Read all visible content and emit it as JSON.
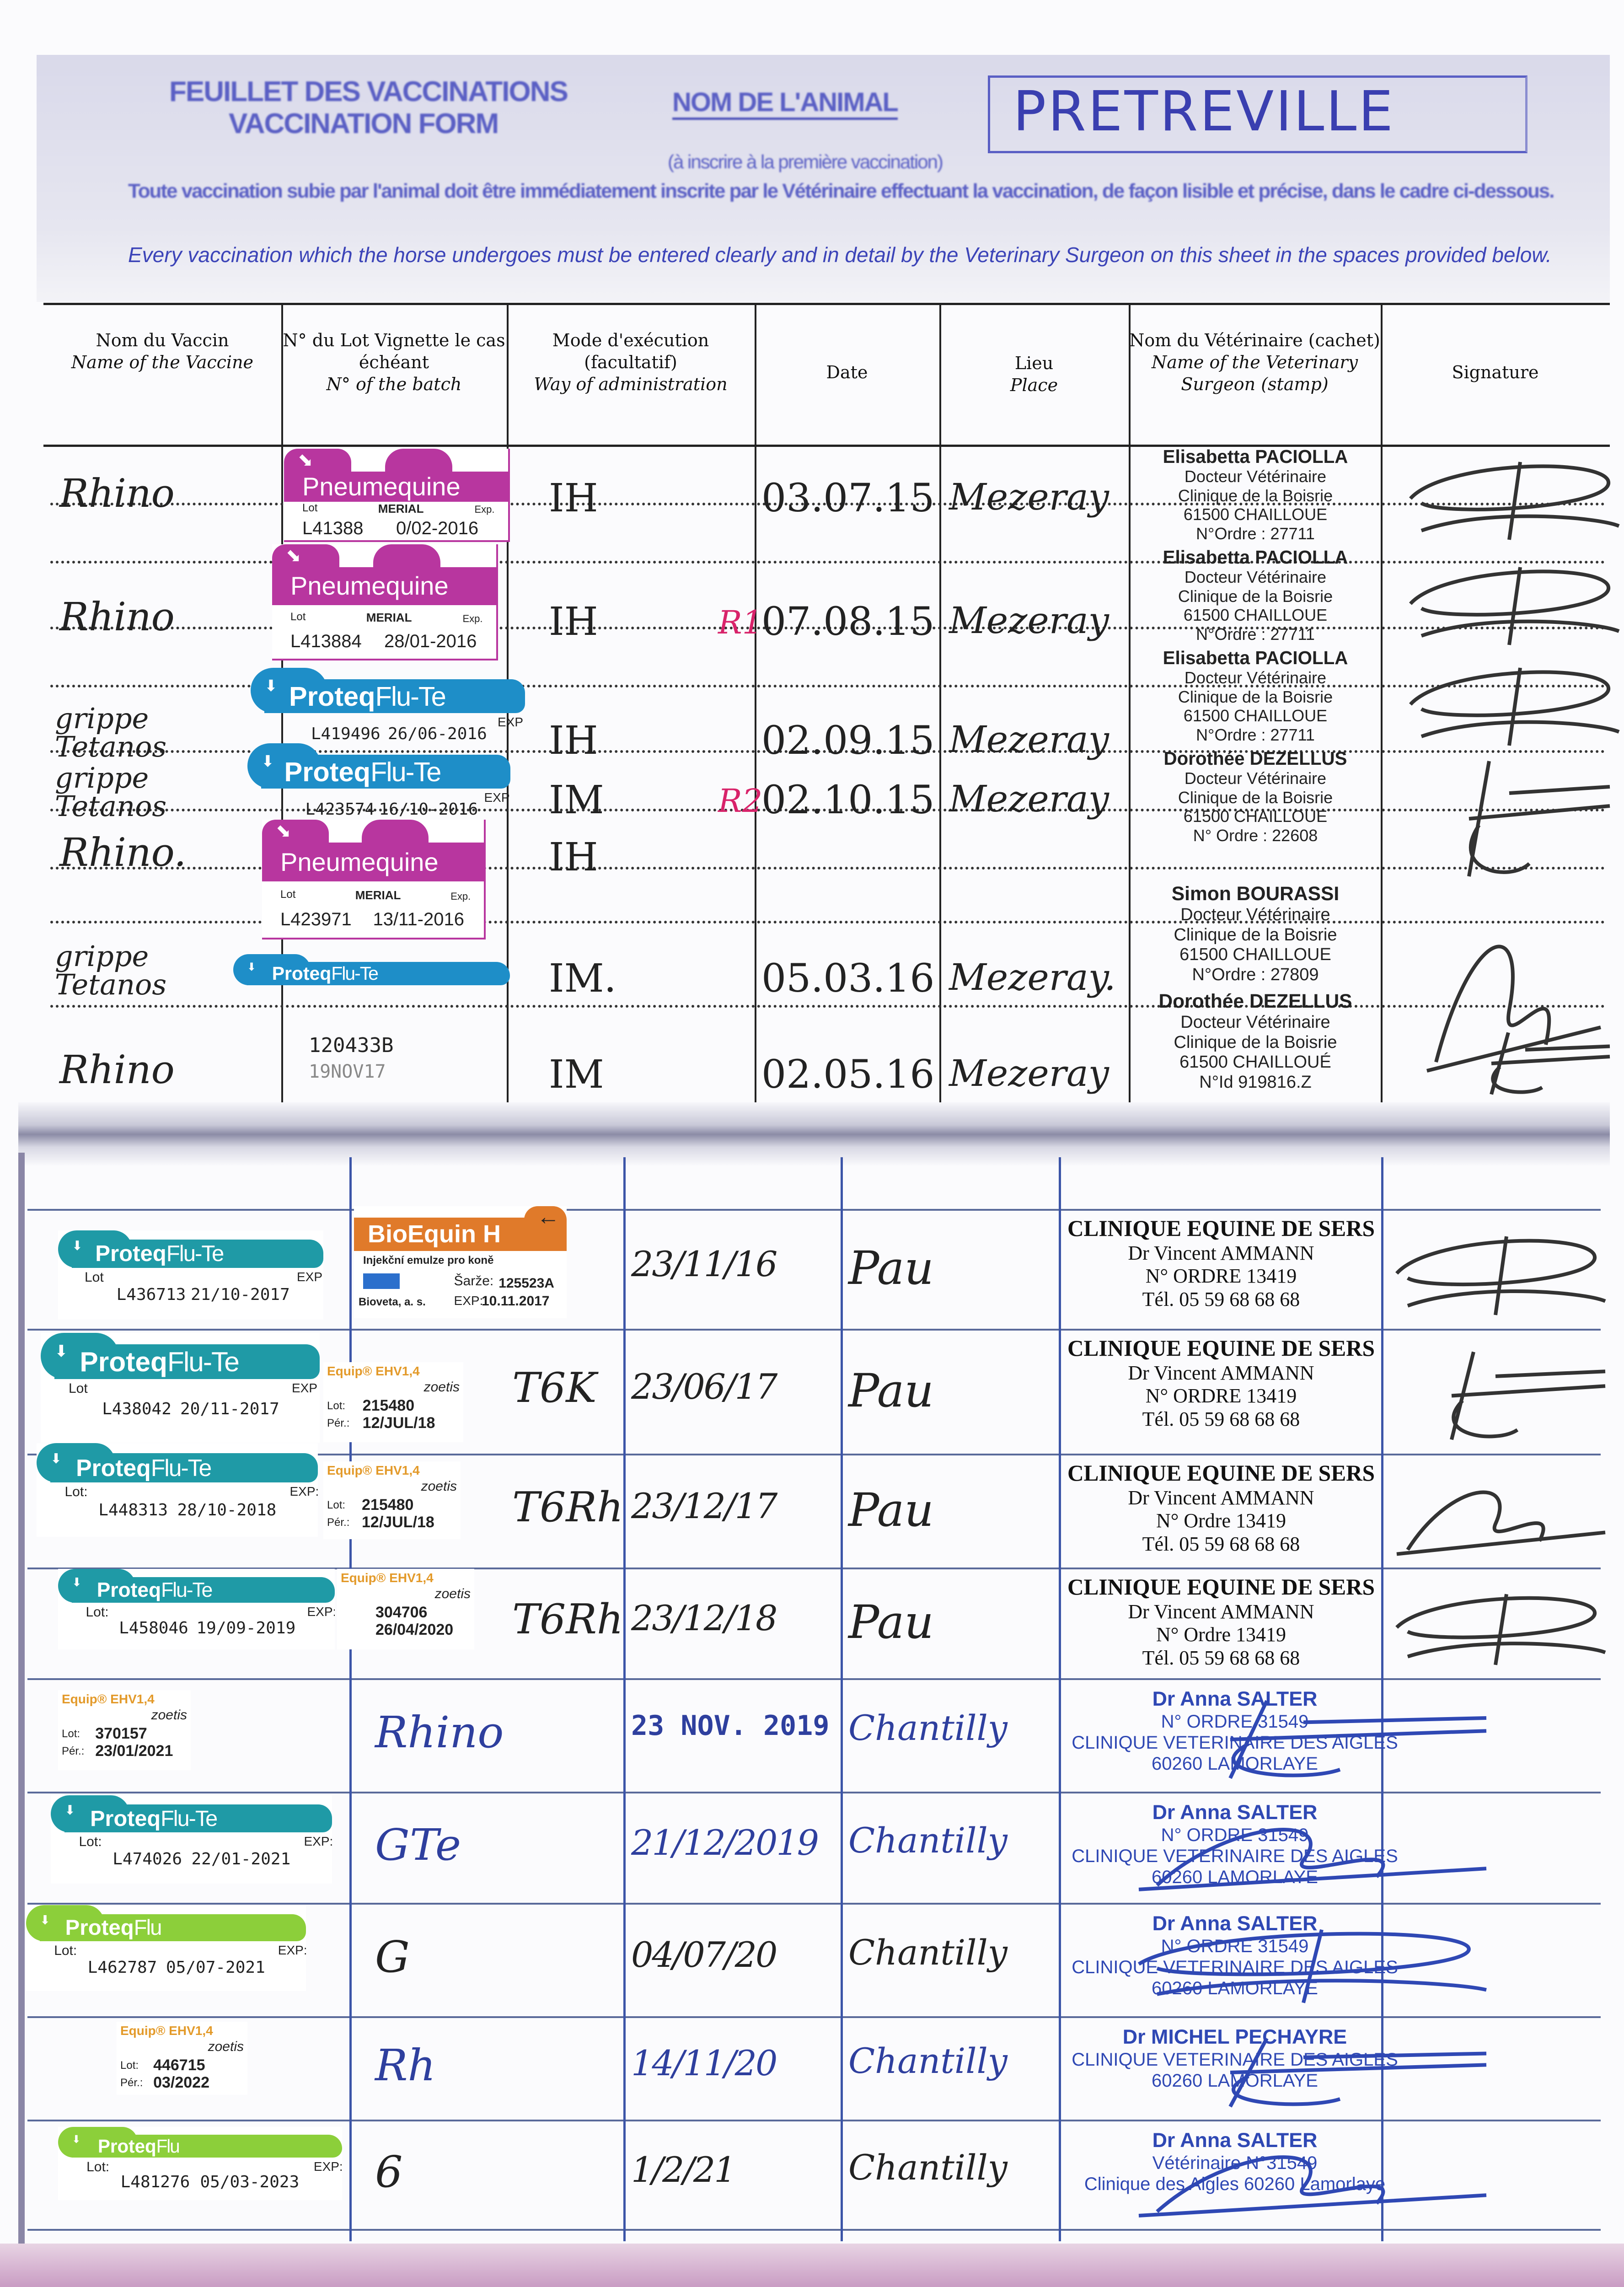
{
  "header": {
    "title_fr": "FEUILLET DES VACCINATIONS",
    "title_en": "VACCINATION FORM",
    "animal_name_label": "NOM DE L'ANIMAL",
    "animal_name": "PRETREVILLE",
    "animal_name_note": "(à inscrire à la première vaccination)",
    "instruction_fr": "Toute vaccination subie par l'animal doit être immédiatement inscrite par le Vétérinaire effectuant la vaccination, de façon lisible et précise, dans le cadre ci-dessous.",
    "instruction_en": "Every vaccination which the horse undergoes must be entered clearly and in detail by the Veterinary Surgeon on this sheet in the spaces provided below."
  },
  "columns": [
    {
      "fr": "Nom du Vaccin",
      "en": "Name of the Vaccine"
    },
    {
      "fr": "N° du Lot Vignette le cas échéant",
      "en": "N° of the batch"
    },
    {
      "fr": "Mode d'exécution (facultatif)",
      "en": "Way of administration"
    },
    {
      "fr": "Date",
      "en": ""
    },
    {
      "fr": "Lieu",
      "en": "Place"
    },
    {
      "fr": "Nom du Vétérinaire (cachet)",
      "en": "Name of the Veterinary Surgeon (stamp)"
    },
    {
      "fr": "Signature",
      "en": ""
    }
  ],
  "colors": {
    "pneumequine": "#b8369f",
    "proteq_flu_te_top": "#1e8ec8",
    "proteq_flu_te": "#1f9aa6",
    "proteq_flu": "#8ccf3a",
    "bioequin": "#e07a2a",
    "equip": "#e39a2a",
    "ink_blue": "#2e3f9e",
    "ink_red": "#d8236a"
  },
  "top_entries": [
    {
      "vaccine": "Rhino",
      "mode": "IH",
      "date": "03.07.15",
      "place": "Mezeray",
      "sticker": {
        "type": "pneumequine",
        "product": "Pneumequine",
        "maker": "MERIAL",
        "lot_label": "Lot",
        "exp_label": "Exp.",
        "lot": "L41388",
        "exp": "0/02-2016"
      },
      "stamp": [
        "Elisabetta PACIOLLA",
        "Docteur Vétérinaire",
        "Clinique de la Boisrie",
        "61500 CHAILLOUE",
        "N°Ordre : 27711"
      ]
    },
    {
      "vaccine": "Rhino",
      "mode": "IH",
      "date": "07.08.15",
      "place": "Mezeray",
      "annotation": "R1",
      "sticker": {
        "type": "pneumequine",
        "product": "Pneumequine",
        "maker": "MERIAL",
        "lot_label": "Lot",
        "exp_label": "Exp.",
        "lot": "L413884",
        "exp": "28/01-2016"
      },
      "stamp": [
        "Elisabetta PACIOLLA",
        "Docteur Vétérinaire",
        "Clinique de la Boisrie",
        "61500 CHAILLOUE",
        "N°Ordre : 27711"
      ]
    },
    {
      "vaccine": "grippe Tetanos",
      "mode": "IH",
      "date": "02.09.15",
      "place": "Mezeray",
      "sticker": {
        "type": "proteq",
        "brand": "Proteq",
        "variant": "Flu-Te",
        "exp_label": "EXP",
        "lot": "L419496",
        "exp": "26/06-2016"
      },
      "stamp": [
        "Elisabetta PACIOLLA",
        "Docteur Vétérinaire",
        "Clinique de la Boisrie",
        "61500 CHAILLOUE",
        "N°Ordre : 27711"
      ]
    },
    {
      "vaccine": "grippe Tetanos",
      "mode": "IM",
      "date": "02.10.15",
      "place": "Mezeray",
      "annotation": "R2",
      "sticker": {
        "type": "proteq",
        "brand": "Proteq",
        "variant": "Flu-Te",
        "exp_label": "EXP",
        "lot": "L423574",
        "exp": "16/10-2016"
      },
      "stamp": [
        "Dorothée DEZELLUS",
        "Docteur Vétérinaire",
        "Clinique de la Boisrie",
        "61500 CHAILLOUE",
        "N° Ordre : 22608"
      ]
    },
    {
      "vaccine": "Rhino.",
      "mode": "IH",
      "date": "",
      "place": "",
      "sticker": {
        "type": "pneumequine",
        "product": "Pneumequine",
        "maker": "MERIAL",
        "lot_label": "Lot",
        "exp_label": "Exp.",
        "lot": "L423971",
        "exp": "13/11-2016"
      }
    },
    {
      "vaccine": "grippe Tetanos",
      "mode": "IM.",
      "date": "05.03.16",
      "place": "Mezeray.",
      "sticker": {
        "type": "proteq",
        "brand": "Proteq",
        "variant": "Flu-Te"
      },
      "stamp": [
        "Simon BOURASSI",
        "Docteur Vétérinaire",
        "Clinique de la Boisrie",
        "61500 CHAILLOUE",
        "N°Ordre : 27809"
      ]
    },
    {
      "vaccine": "Rhino",
      "mode": "IM",
      "date": "02.05.16",
      "place": "Mezeray",
      "batch": [
        "120433B",
        "19NOV17"
      ],
      "stamp": [
        "Dorothée DEZELLUS",
        "Docteur Vétérinaire",
        "Clinique de la Boisrie",
        "61500 CHAILLOUÉ",
        "N°Id 919816.Z"
      ]
    }
  ],
  "bottom_entries": [
    {
      "stickers": [
        {
          "type": "proteq",
          "brand": "Proteq",
          "variant": "Flu-Te",
          "lot_label": "Lot",
          "exp_label": "EXP",
          "lot": "L436713",
          "exp": "21/10-2017"
        },
        {
          "type": "bioequin",
          "product": "BioEquin H",
          "subtitle": "Injekční emulze pro koně",
          "maker": "Bioveta, a. s.",
          "lot_label": "Šarže:",
          "exp_label": "EXP:",
          "lot": "125523A",
          "exp": "10.11.2017"
        }
      ],
      "mode": "",
      "date": "23/11/16",
      "place": "Pau",
      "stamp": [
        "CLINIQUE EQUINE DE SERS",
        "Dr Vincent AMMANN",
        "N° ORDRE 13419",
        "Tél. 05 59 68 68 68"
      ]
    },
    {
      "stickers": [
        {
          "type": "proteq",
          "brand": "Proteq",
          "variant": "Flu-Te",
          "lot_label": "Lot",
          "exp_label": "EXP",
          "lot": "L438042",
          "exp": "20/11-2017"
        },
        {
          "type": "equip",
          "product": "Equip® EHV1,4",
          "maker": "zoetis",
          "lot_label": "Lot:",
          "exp_label": "Pér.:",
          "lot": "215480",
          "exp": "12/JUL/18"
        }
      ],
      "mode": "T6K",
      "date": "23/06/17",
      "place": "Pau",
      "stamp": [
        "CLINIQUE EQUINE DE SERS",
        "Dr Vincent AMMANN",
        "N° ORDRE 13419",
        "Tél. 05 59 68 68 68"
      ]
    },
    {
      "stickers": [
        {
          "type": "proteq",
          "brand": "Proteq",
          "variant": "Flu-Te",
          "lot_label": "Lot:",
          "exp_label": "EXP:",
          "lot": "L448313",
          "exp": "28/10-2018"
        },
        {
          "type": "equip",
          "product": "Equip® EHV1,4",
          "maker": "zoetis",
          "lot_label": "Lot:",
          "exp_label": "Pér.:",
          "lot": "215480",
          "exp": "12/JUL/18"
        }
      ],
      "mode": "T6Rh",
      "date": "23/12/17",
      "place": "Pau",
      "stamp": [
        "CLINIQUE EQUINE DE SERS",
        "Dr Vincent AMMANN",
        "N° Ordre 13419",
        "Tél. 05 59 68 68 68"
      ]
    },
    {
      "stickers": [
        {
          "type": "proteq",
          "brand": "Proteq",
          "variant": "Flu-Te",
          "lot_label": "Lot:",
          "exp_label": "EXP:",
          "lot": "L458046",
          "exp": "19/09-2019"
        },
        {
          "type": "equip",
          "product": "Equip® EHV1,4",
          "maker": "zoetis",
          "lot_label": "",
          "exp_label": "",
          "lot": "304706",
          "exp": "26/04/2020"
        }
      ],
      "mode": "T6Rh",
      "date": "23/12/18",
      "place": "Pau",
      "stamp": [
        "CLINIQUE EQUINE DE SERS",
        "Dr Vincent AMMANN",
        "N° Ordre 13419",
        "Tél. 05 59 68 68 68"
      ]
    },
    {
      "stickers": [
        {
          "type": "equip",
          "product": "Equip® EHV1,4",
          "maker": "zoetis",
          "lot_label": "Lot:",
          "exp_label": "Pér.:",
          "lot": "370157",
          "exp": "23/01/2021"
        }
      ],
      "mode": "Rhino",
      "date": "23 NOV. 2019",
      "place": "Chantilly",
      "stamp": [
        "Dr Anna SALTER",
        "N° ORDRE 31549",
        "CLINIQUE VETERINAIRE DES AIGLES",
        "60260 LAMORLAYE"
      ]
    },
    {
      "stickers": [
        {
          "type": "proteq",
          "brand": "Proteq",
          "variant": "Flu-Te",
          "lot_label": "Lot:",
          "exp_label": "EXP:",
          "lot": "L474026",
          "exp": "22/01-2021"
        }
      ],
      "mode": "GTe",
      "date": "21/12/2019",
      "place": "Chantilly",
      "stamp": [
        "Dr Anna SALTER",
        "N° ORDRE 31549",
        "CLINIQUE VETERINAIRE DES AIGLES",
        "60260 LAMORLAYE"
      ]
    },
    {
      "stickers": [
        {
          "type": "proteqflu",
          "brand": "Proteq",
          "variant": "Flu",
          "lot_label": "Lot:",
          "exp_label": "EXP:",
          "lot": "L462787",
          "exp": "05/07-2021"
        }
      ],
      "mode": "G",
      "date": "04/07/20",
      "place": "Chantilly",
      "stamp": [
        "Dr Anna SALTER",
        "N° ORDRE 31549",
        "CLINIQUE VETERINAIRE DES AIGLES",
        "60260 LAMORLAYE"
      ]
    },
    {
      "stickers": [
        {
          "type": "equip",
          "product": "Equip® EHV1,4",
          "maker": "zoetis",
          "lot_label": "Lot:",
          "exp_label": "Pér.:",
          "lot": "446715",
          "exp": "03/2022"
        }
      ],
      "mode": "Rh",
      "date": "14/11/20",
      "place": "Chantilly",
      "stamp": [
        "Dr MICHEL PECHAYRE",
        "CLINIQUE VETERINAIRE DES AIGLES",
        "60260 LAMORLAYE"
      ]
    },
    {
      "stickers": [
        {
          "type": "proteqflu",
          "brand": "Proteq",
          "variant": "Flu",
          "lot_label": "Lot:",
          "exp_label": "EXP:",
          "lot": "L481276",
          "exp": "05/03-2023"
        }
      ],
      "mode": "6",
      "date": "1/2/21",
      "place": "Chantilly",
      "stamp": [
        "Dr Anna SALTER",
        "Vétérinaire N°31549",
        "Clinique des Aigles 60260 Lamorlaye"
      ]
    }
  ]
}
